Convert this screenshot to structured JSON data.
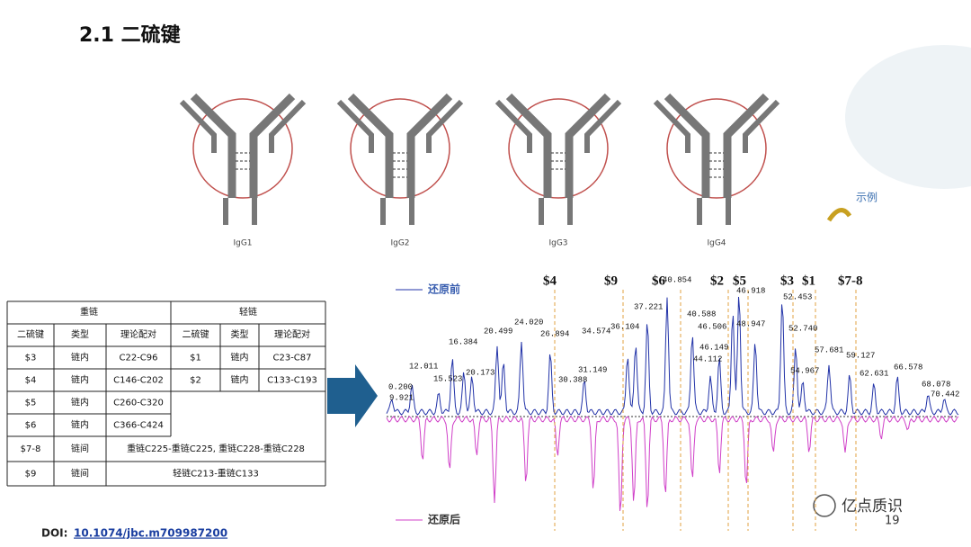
{
  "header": {
    "title": "2.1 二硫键"
  },
  "diagrams": {
    "labels": [
      "IgG1",
      "IgG2",
      "IgG3",
      "IgG4"
    ],
    "example": "示例"
  },
  "table": {
    "group_headers": [
      "重链",
      "轻链"
    ],
    "columns": [
      "二硫键",
      "类型",
      "理论配对",
      "二硫键",
      "类型",
      "理论配对"
    ],
    "rows": [
      [
        "$3",
        "链内",
        "C22-C96",
        "$1",
        "链内",
        "C23-C87"
      ],
      [
        "$4",
        "链内",
        "C146-C202",
        "$2",
        "链内",
        "C133-C193"
      ],
      [
        "$5",
        "链内",
        "C260-C320"
      ],
      [
        "$6",
        "链内",
        "C366-C424"
      ],
      [
        "$7-8",
        "链间",
        "重链C225-重链C225, 重链C228-重链C228"
      ],
      [
        "$9",
        "链间",
        "轻链C213-重链C133"
      ]
    ]
  },
  "chromatogram": {
    "legend": [
      "还原前",
      "还原后"
    ],
    "bond_markers": [
      "$4",
      "$9",
      "$6",
      "$2",
      "$5",
      "$3",
      "$1",
      "$7-8"
    ],
    "peak_labels": [
      "0.200",
      "9.921",
      "12.011",
      "15.523",
      "16.384",
      "20.173",
      "20.499",
      "24.020",
      "26.894",
      "30.388",
      "31.149",
      "34.574",
      "36.104",
      "37.221",
      "40.854",
      "40.588",
      "46.506",
      "46.149",
      "44.112",
      "46.918",
      "48.947",
      "52.453",
      "52.740",
      "54.967",
      "57.681",
      "59.127",
      "62.631",
      "66.578",
      "68.078",
      "70.442"
    ]
  },
  "footer": {
    "doi_label": "DOI:",
    "doi": "10.1074/jbc.m709987200",
    "page": "19",
    "brand": "亿点质识"
  }
}
